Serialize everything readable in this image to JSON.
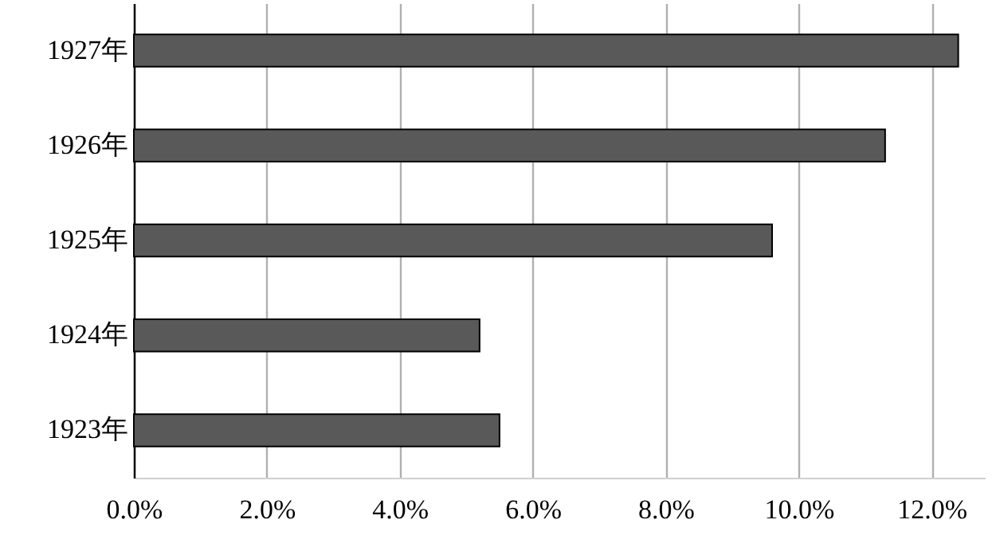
{
  "chart_data": {
    "type": "bar",
    "orientation": "horizontal",
    "categories": [
      "1927年",
      "1926年",
      "1925年",
      "1924年",
      "1923年"
    ],
    "values": [
      12.4,
      11.3,
      9.6,
      5.2,
      5.5
    ],
    "color": "#595959",
    "xlim": [
      0,
      12.8
    ],
    "xticks": [
      {
        "value": 0,
        "label": "0.0%"
      },
      {
        "value": 2,
        "label": "2.0%"
      },
      {
        "value": 4,
        "label": "4.0%"
      },
      {
        "value": 6,
        "label": "6.0%"
      },
      {
        "value": 8,
        "label": "8.0%"
      },
      {
        "value": 10,
        "label": "10.0%"
      },
      {
        "value": 12,
        "label": "12.0%"
      }
    ],
    "grid": "x"
  }
}
